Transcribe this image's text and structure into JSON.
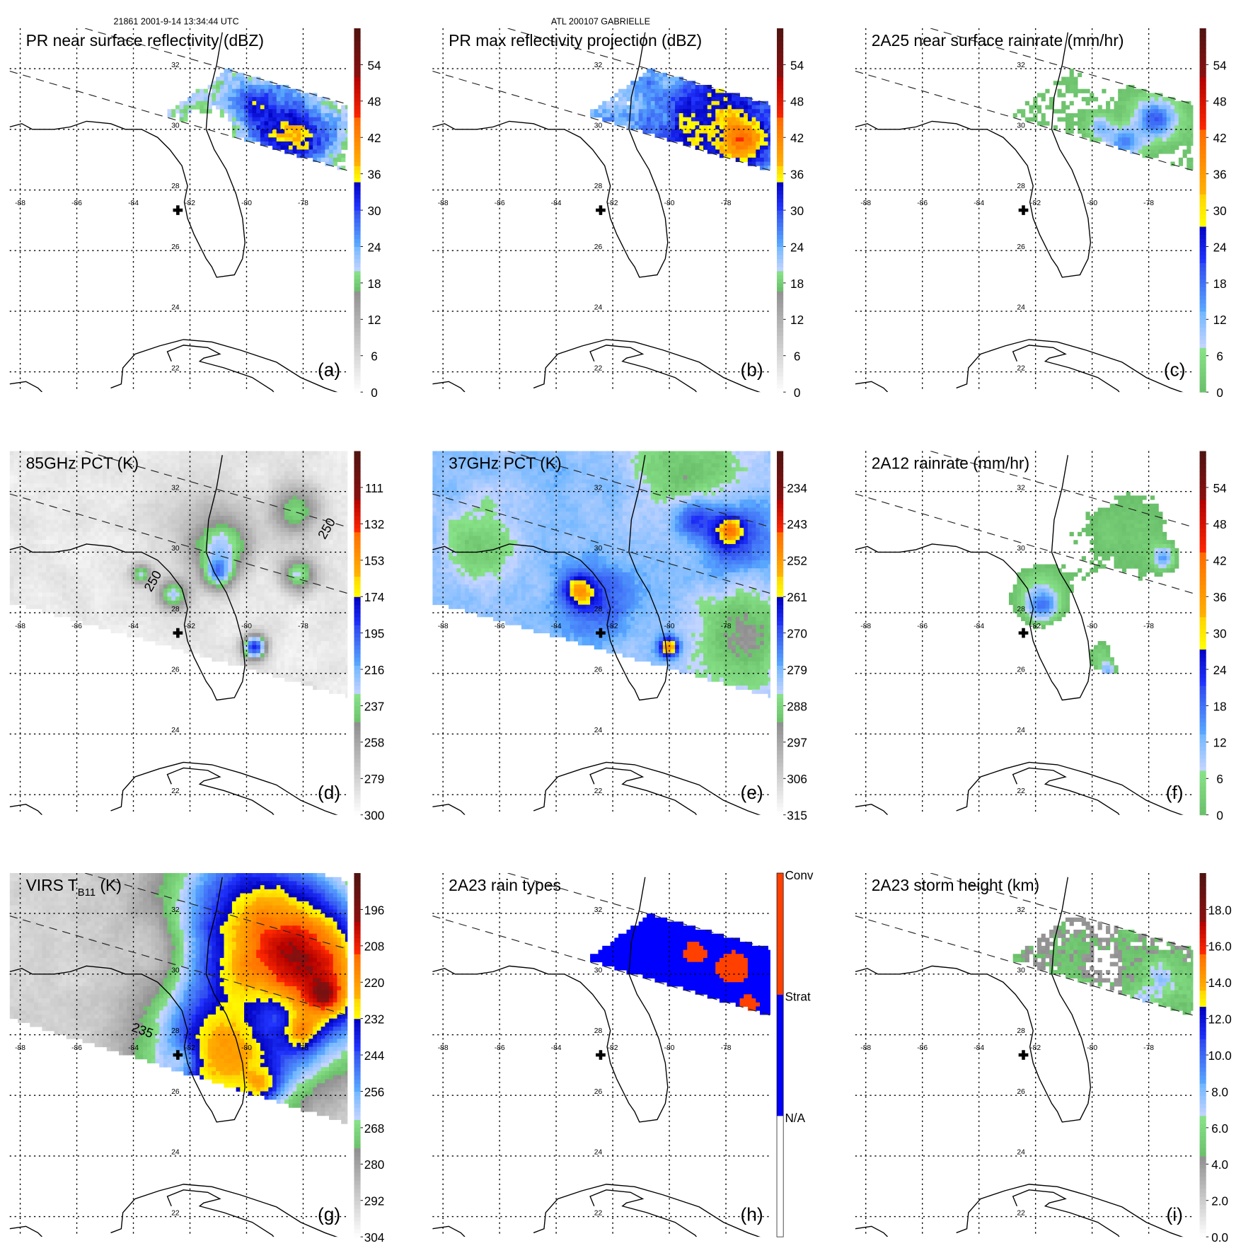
{
  "header": {
    "orbit_time": "21861 2001-9-14 13:34:44 UTC",
    "storm": "ATL 200107 GABRIELLE"
  },
  "map": {
    "lon_labels": [
      "-88",
      "-86",
      "-84",
      "-82",
      "-80",
      "-78"
    ],
    "lat_labels": [
      "32",
      "30",
      "28",
      "26",
      "24",
      "22"
    ]
  },
  "panels": [
    {
      "id": "a",
      "title": "PR near surface reflectivity (dBZ)",
      "letter": "(a)",
      "colorbar_labels": [
        "0",
        "6",
        "12",
        "18",
        "24",
        "30",
        "36",
        "42",
        "48",
        "54"
      ]
    },
    {
      "id": "b",
      "title": "PR max reflectivity projection (dBZ)",
      "letter": "(b)",
      "colorbar_labels": [
        "0",
        "6",
        "12",
        "18",
        "24",
        "30",
        "36",
        "42",
        "48",
        "54"
      ]
    },
    {
      "id": "c",
      "title": "2A25 near surface rainrate (mm/hr)",
      "letter": "(c)",
      "colorbar_labels": [
        "0",
        "6",
        "12",
        "18",
        "24",
        "30",
        "36",
        "42",
        "48",
        "54"
      ]
    },
    {
      "id": "d",
      "title": "85GHz PCT (K)",
      "letter": "(d)",
      "colorbar_labels": [
        "300",
        "279",
        "258",
        "237",
        "216",
        "195",
        "174",
        "153",
        "132",
        "111"
      ],
      "contour_labels": [
        "250",
        "250"
      ]
    },
    {
      "id": "e",
      "title": "37GHz PCT (K)",
      "letter": "(e)",
      "colorbar_labels": [
        "315",
        "306",
        "297",
        "288",
        "279",
        "270",
        "261",
        "252",
        "243",
        "234"
      ]
    },
    {
      "id": "f",
      "title": "2A12 rainrate (mm/hr)",
      "letter": "(f)",
      "colorbar_labels": [
        "0",
        "6",
        "12",
        "18",
        "24",
        "30",
        "36",
        "42",
        "48",
        "54"
      ]
    },
    {
      "id": "g",
      "title": "VIRS T",
      "title_sub": "B11",
      "title_suffix": " (K)",
      "letter": "(g)",
      "colorbar_labels": [
        "304",
        "292",
        "280",
        "268",
        "256",
        "244",
        "232",
        "220",
        "208",
        "196"
      ],
      "contour_labels": [
        "235"
      ]
    },
    {
      "id": "h",
      "title": "2A23 rain types",
      "letter": "(h)",
      "colorbar_categories": [
        "N/A",
        "Strat",
        "Conv"
      ]
    },
    {
      "id": "i",
      "title": "2A23 storm height (km)",
      "letter": "(i)",
      "colorbar_labels": [
        "0.0",
        "2.0",
        "4.0",
        "6.0",
        "8.0",
        "10.0",
        "12.0",
        "14.0",
        "16.0",
        "18.0"
      ]
    }
  ],
  "colors": {
    "coastline": "#000000",
    "grid": "#000000",
    "conv": "#ff4000",
    "strat": "#0000ff",
    "na": "#ffffff"
  }
}
